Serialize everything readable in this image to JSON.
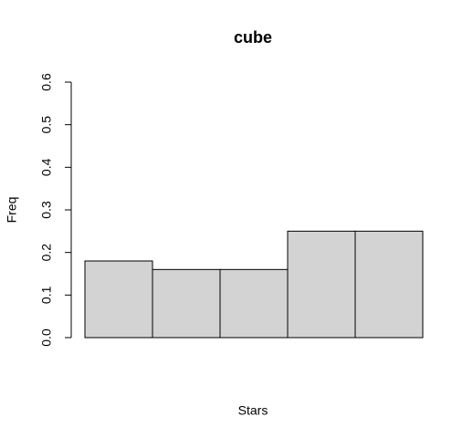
{
  "chart_data": {
    "type": "bar",
    "title": "cube",
    "xlabel": "Stars",
    "ylabel": "Freq",
    "categories": [
      null,
      null,
      null,
      null,
      null
    ],
    "values": [
      0.18,
      0.16,
      0.16,
      0.25,
      0.25
    ],
    "color": "#d3d3d3",
    "ylim": [
      0,
      0.6
    ],
    "yticks": [
      {
        "value": 0,
        "label": "0.0"
      },
      0.1,
      0.2,
      0.3,
      0.4,
      0.5,
      0.6
    ]
  }
}
